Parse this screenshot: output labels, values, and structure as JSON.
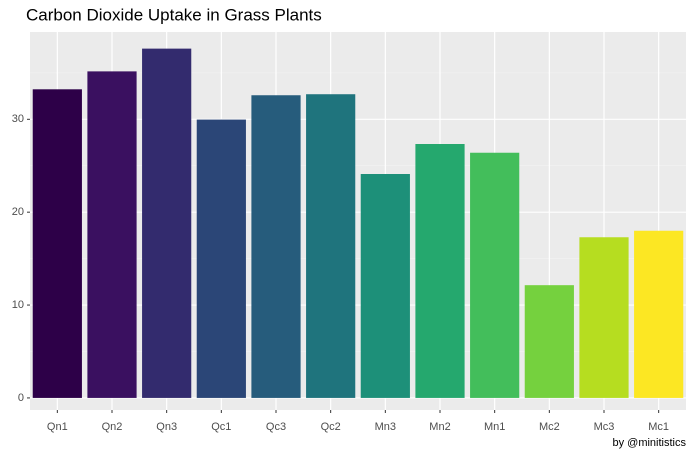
{
  "chart_data": {
    "type": "bar",
    "title": "Carbon Dioxide Uptake in Grass Plants",
    "caption": "by @minitistics",
    "categories": [
      "Qn1",
      "Qn2",
      "Qn3",
      "Qc1",
      "Qc3",
      "Qc2",
      "Mn3",
      "Mn2",
      "Mn1",
      "Mc2",
      "Mc3",
      "Mc1"
    ],
    "values": [
      33.23,
      35.16,
      37.61,
      29.97,
      32.59,
      32.7,
      24.11,
      27.34,
      26.4,
      12.14,
      17.3,
      18.0
    ],
    "colors": [
      "#2d0048",
      "#3a1060",
      "#332b6e",
      "#2b4677",
      "#265c7c",
      "#1f747d",
      "#1d9079",
      "#25a86e",
      "#43be5b",
      "#75d13e",
      "#b6dd20",
      "#fce723"
    ],
    "ylim": [
      -1.3,
      39.4
    ],
    "yticks": [
      0,
      10,
      20,
      30
    ],
    "grid": true
  }
}
